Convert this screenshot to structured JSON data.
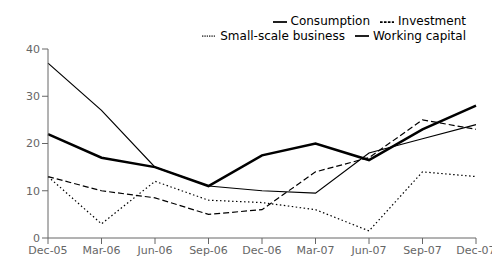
{
  "chart_data": {
    "type": "line",
    "categories": [
      "Dec-05",
      "Mar-06",
      "Jun-06",
      "Sep-06",
      "Dec-06",
      "Mar-07",
      "Jun-07",
      "Sep-07",
      "Dec-07"
    ],
    "series": [
      {
        "name": "Consumption",
        "color": "#000000",
        "line_style": "solid",
        "values": [
          37,
          27,
          15,
          11,
          10,
          9.5,
          18,
          21,
          24
        ]
      },
      {
        "name": "Working capital",
        "color": "#000000",
        "line_style": "thick",
        "values": [
          22,
          17,
          15,
          11,
          17.5,
          20,
          16.5,
          23,
          28
        ]
      },
      {
        "name": "Investment",
        "color": "#000000",
        "line_style": "dashed",
        "values": [
          13,
          10,
          8.5,
          5,
          6,
          14,
          17,
          25,
          23
        ]
      },
      {
        "name": "Small-scale business",
        "color": "#000000",
        "line_style": "dotted",
        "values": [
          13,
          3,
          12,
          8,
          7.5,
          6,
          1.5,
          14,
          13
        ]
      }
    ],
    "ylim": [
      0,
      40
    ],
    "yticks": [
      0,
      10,
      20,
      30,
      40
    ],
    "grid": false,
    "legend": "upper right"
  }
}
